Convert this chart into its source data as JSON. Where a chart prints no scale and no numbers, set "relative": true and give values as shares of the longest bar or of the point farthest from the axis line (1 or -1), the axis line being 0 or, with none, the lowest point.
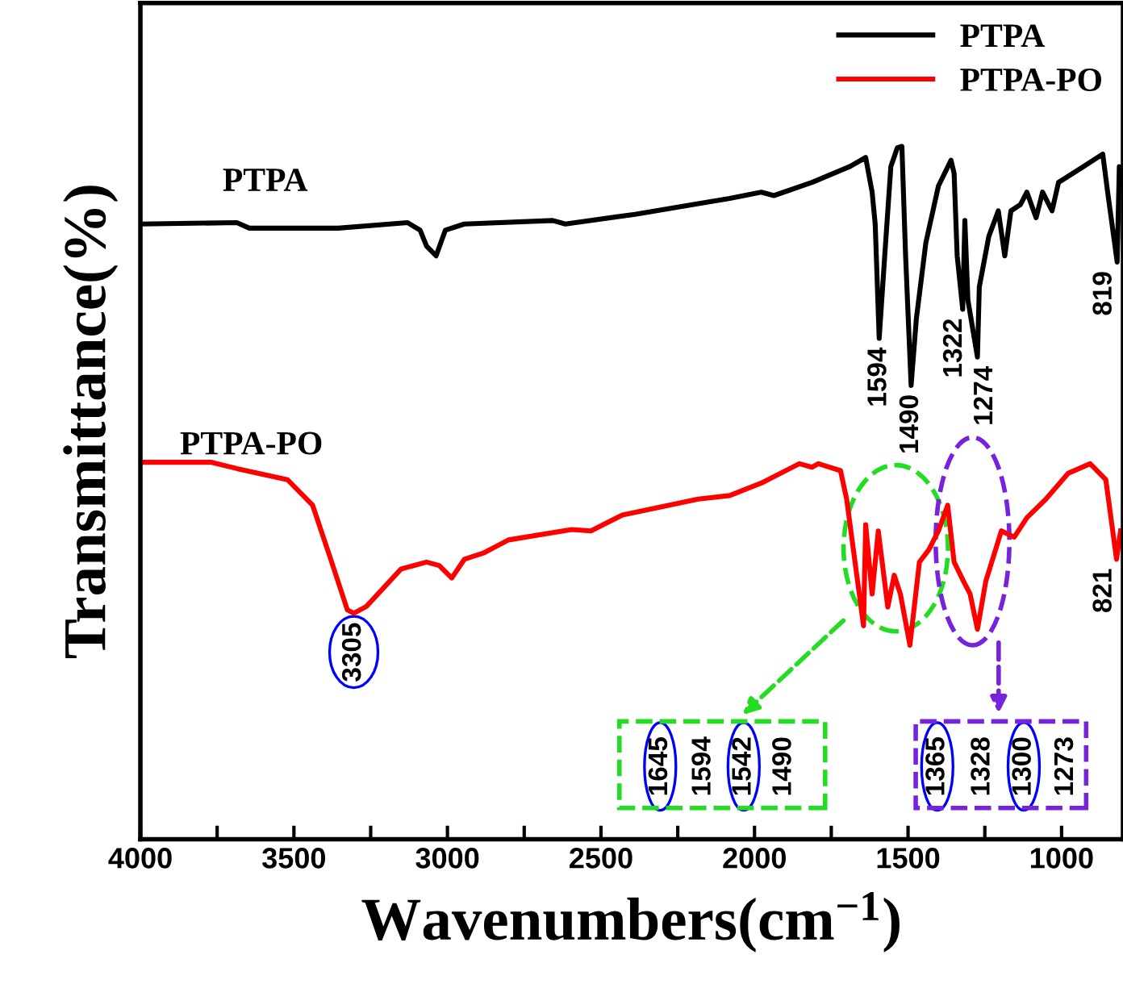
{
  "chart_data": {
    "type": "line",
    "relative": true,
    "xlabel": "Wavenumbers(cm$^{−1}$)",
    "ylabel": "Transmittance(%)",
    "xlim": [
      4000,
      800
    ],
    "xticks": [
      4000,
      {
        "value": 3750,
        "label": null
      },
      3500,
      {
        "value": 3250,
        "label": null
      },
      3000,
      {
        "value": 2750,
        "label": null
      },
      2500,
      {
        "value": 2250,
        "label": null
      },
      2000,
      {
        "value": 1750,
        "label": null
      },
      1500,
      {
        "value": 1250,
        "label": null
      },
      1000
    ],
    "tick_labels": "x",
    "legend": "top right",
    "grid": false,
    "line_style": "solid",
    "marker": "none",
    "series": [
      {
        "name": "PTPA",
        "color": "#000000",
        "x": [
          4000,
          3686,
          3645,
          3356,
          3130,
          3089,
          3068,
          3037,
          3007,
          2945,
          2657,
          2616,
          2389,
          2081,
          1978,
          1937,
          1813,
          1689,
          1638,
          1617,
          1607,
          1594,
          1576,
          1556,
          1535,
          1520,
          1508,
          1490,
          1473,
          1442,
          1401,
          1360,
          1350,
          1340,
          1322,
          1315,
          1305,
          1274,
          1268,
          1237,
          1206,
          1185,
          1165,
          1134,
          1113,
          1083,
          1062,
          1031,
          1010,
          928,
          866,
          850,
          819,
          812,
          805
        ],
        "values": [
          0.888,
          0.89,
          0.882,
          0.882,
          0.89,
          0.879,
          0.856,
          0.842,
          0.879,
          0.888,
          0.893,
          0.888,
          0.902,
          0.925,
          0.934,
          0.929,
          0.948,
          0.971,
          0.984,
          0.934,
          0.888,
          0.723,
          0.842,
          0.971,
          0.998,
          1.0,
          0.842,
          0.655,
          0.751,
          0.861,
          0.943,
          0.98,
          0.961,
          0.842,
          0.765,
          0.893,
          0.778,
          0.696,
          0.797,
          0.87,
          0.907,
          0.842,
          0.907,
          0.916,
          0.934,
          0.897,
          0.934,
          0.907,
          0.948,
          0.971,
          0.989,
          0.934,
          0.833,
          0.971,
          0.952
        ]
      },
      {
        "name": "PTPA-PO",
        "color": "#ff0000",
        "x": [
          4000,
          3768,
          3686,
          3521,
          3439,
          3377,
          3326,
          3305,
          3264,
          3151,
          3068,
          3027,
          2986,
          2945,
          2883,
          2801,
          2595,
          2533,
          2430,
          2183,
          2081,
          1978,
          1854,
          1813,
          1792,
          1720,
          1700,
          1645,
          1638,
          1617,
          1597,
          1566,
          1545,
          1525,
          1494,
          1463,
          1432,
          1401,
          1371,
          1350,
          1319,
          1298,
          1274,
          1247,
          1196,
          1154,
          1113,
          1051,
          979,
          907,
          856,
          821,
          808
        ],
        "values": [
          0.544,
          0.544,
          0.535,
          0.519,
          0.482,
          0.4,
          0.331,
          0.326,
          0.336,
          0.39,
          0.4,
          0.395,
          0.377,
          0.404,
          0.413,
          0.432,
          0.447,
          0.445,
          0.468,
          0.491,
          0.496,
          0.514,
          0.542,
          0.537,
          0.542,
          0.532,
          0.491,
          0.308,
          0.454,
          0.354,
          0.445,
          0.335,
          0.381,
          0.354,
          0.28,
          0.4,
          0.418,
          0.445,
          0.482,
          0.4,
          0.372,
          0.354,
          0.303,
          0.372,
          0.445,
          0.436,
          0.464,
          0.491,
          0.528,
          0.542,
          0.519,
          0.404,
          0.445
        ]
      }
    ],
    "annotations": [
      "PTPA",
      "PTPA-PO",
      {
        "text": "1594",
        "x": 1594,
        "y": 0.723
      },
      {
        "text": "1490",
        "x": 1490,
        "y": 0.655
      },
      {
        "text": "1322",
        "x": 1322,
        "y": 0.765
      },
      {
        "text": "1274",
        "x": 1274,
        "y": 0.696
      },
      {
        "text": "819",
        "x": 819,
        "y": 0.833
      },
      {
        "text": "3305",
        "x": 3305,
        "y": 0.326
      },
      {
        "text": "821",
        "x": 821,
        "y": 0.404
      },
      "1645",
      "1594",
      "1542",
      "1490",
      "1365",
      "1328",
      "1300",
      "1273"
    ]
  }
}
